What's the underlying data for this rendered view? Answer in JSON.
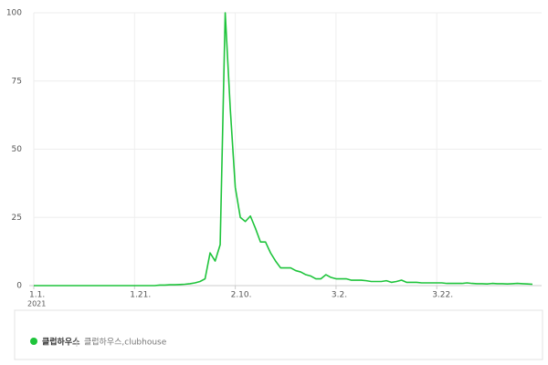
{
  "chart_data": {
    "type": "line",
    "categories": [
      "1.1.",
      null,
      null,
      null,
      null,
      null,
      null,
      null,
      null,
      null,
      null,
      null,
      null,
      null,
      null,
      null,
      null,
      null,
      null,
      null,
      "1.21.",
      null,
      null,
      null,
      null,
      null,
      null,
      null,
      null,
      null,
      null,
      null,
      null,
      null,
      null,
      null,
      null,
      null,
      null,
      null,
      "2.10.",
      null,
      null,
      null,
      null,
      null,
      null,
      null,
      null,
      null,
      null,
      null,
      null,
      null,
      null,
      null,
      null,
      null,
      null,
      null,
      "3.2.",
      null,
      null,
      null,
      null,
      null,
      null,
      null,
      null,
      null,
      null,
      null,
      null,
      null,
      null,
      null,
      null,
      null,
      null,
      null,
      "3.22.",
      null,
      null,
      null,
      null,
      null,
      null,
      null,
      null,
      null,
      null,
      null,
      null,
      null,
      null,
      null,
      null,
      null,
      null,
      null
    ],
    "year_label": "2021",
    "series": [
      {
        "name": "클럽하우스",
        "keywords": "클럽하우스,clubhouse",
        "color": "#1ec43b",
        "values": [
          0,
          0,
          0,
          0,
          0,
          0,
          0,
          0,
          0,
          0,
          0,
          0,
          0,
          0,
          0,
          0,
          0,
          0,
          0,
          0,
          0,
          0,
          0,
          0,
          0,
          0.2,
          0.2,
          0.3,
          0.3,
          0.4,
          0.5,
          0.7,
          1,
          1.5,
          2.5,
          12,
          9,
          15,
          100,
          65,
          36,
          25,
          23.5,
          25.5,
          21,
          16,
          16,
          12,
          9,
          6.5,
          6.5,
          6.5,
          5.5,
          5,
          4,
          3.5,
          2.5,
          2.5,
          4,
          3,
          2.5,
          2.5,
          2.5,
          2,
          2,
          2,
          1.8,
          1.5,
          1.5,
          1.5,
          1.8,
          1.2,
          1.5,
          2,
          1.2,
          1.2,
          1.2,
          1,
          1,
          1,
          1,
          1,
          0.8,
          0.8,
          0.8,
          0.8,
          1,
          0.8,
          0.7,
          0.7,
          0.6,
          0.8,
          0.7,
          0.7,
          0.6,
          0.7,
          0.8,
          0.7,
          0.6,
          0.5
        ]
      }
    ],
    "ylim": [
      0,
      100
    ],
    "yticks": [
      0,
      25,
      50,
      75,
      100
    ],
    "grid": true
  }
}
